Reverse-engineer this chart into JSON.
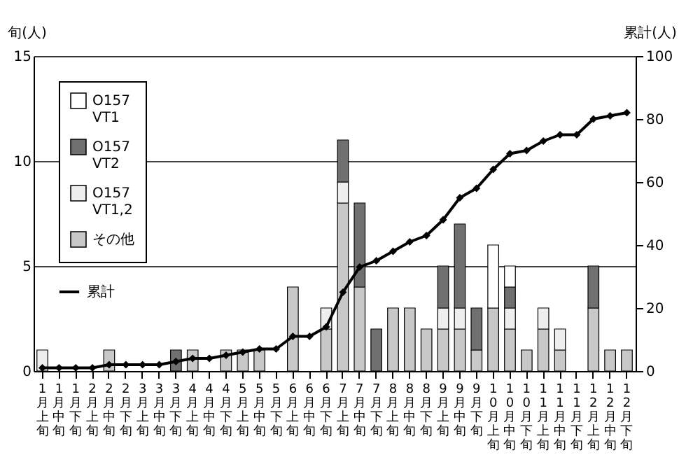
{
  "chart_data": {
    "type": "bar",
    "stacked": true,
    "categories": [
      "1月上旬",
      "1月中旬",
      "1月下旬",
      "2月上旬",
      "2月中旬",
      "2月下旬",
      "3月上旬",
      "3月中旬",
      "3月下旬",
      "4月上旬",
      "4月中旬",
      "4月下旬",
      "5月上旬",
      "5月中旬",
      "5月下旬",
      "6月上旬",
      "6月中旬",
      "6月下旬",
      "7月上旬",
      "7月中旬",
      "7月下旬",
      "8月上旬",
      "8月中旬",
      "8月下旬",
      "9月上旬",
      "9月中旬",
      "9月下旬",
      "10月上旬",
      "10月中旬",
      "10月下旬",
      "11月上旬",
      "11月中旬",
      "11月下旬",
      "12月上旬",
      "12月中旬",
      "12月下旬"
    ],
    "series": [
      {
        "name": "その他",
        "color": "#c8c8c8",
        "values": [
          0,
          0,
          0,
          0,
          1,
          0,
          0,
          0,
          0,
          1,
          0,
          1,
          1,
          1,
          0,
          4,
          0,
          2,
          8,
          4,
          0,
          3,
          3,
          2,
          2,
          2,
          1,
          3,
          2,
          1,
          2,
          1,
          0,
          3,
          1,
          1
        ]
      },
      {
        "name": "O157 VT1,2",
        "color": "#eeeeee",
        "values": [
          1,
          0,
          0,
          0,
          0,
          0,
          0,
          0,
          0,
          0,
          0,
          0,
          0,
          0,
          0,
          0,
          0,
          1,
          1,
          0,
          0,
          0,
          0,
          0,
          1,
          1,
          0,
          0,
          1,
          0,
          1,
          1,
          0,
          0,
          0,
          0
        ]
      },
      {
        "name": "O157 VT2",
        "color": "#707070",
        "values": [
          0,
          0,
          0,
          0,
          0,
          0,
          0,
          0,
          1,
          0,
          0,
          0,
          0,
          0,
          0,
          0,
          0,
          0,
          2,
          4,
          2,
          0,
          0,
          0,
          2,
          4,
          2,
          0,
          1,
          0,
          0,
          0,
          0,
          2,
          0,
          0
        ]
      },
      {
        "name": "O157 VT1",
        "color": "#ffffff",
        "values": [
          0,
          0,
          0,
          0,
          0,
          0,
          0,
          0,
          0,
          0,
          0,
          0,
          0,
          0,
          0,
          0,
          0,
          0,
          0,
          0,
          0,
          0,
          0,
          0,
          0,
          0,
          0,
          3,
          1,
          0,
          0,
          0,
          0,
          0,
          0,
          0
        ]
      },
      {
        "name": "累計",
        "type": "line",
        "axis": "y2",
        "color": "#000000",
        "marker": "diamond",
        "values": [
          1,
          1,
          1,
          1,
          2,
          2,
          2,
          2,
          3,
          4,
          4,
          5,
          6,
          7,
          7,
          11,
          11,
          14,
          25,
          33,
          35,
          38,
          41,
          43,
          48,
          55,
          58,
          64,
          69,
          70,
          73,
          75,
          75,
          80,
          81,
          82
        ]
      }
    ],
    "ylabel": "旬(人)",
    "y2label": "累計(人)",
    "ylim": [
      0,
      15
    ],
    "yticks": [
      0,
      5,
      10,
      15
    ],
    "y2lim": [
      0,
      100
    ],
    "y2ticks": [
      0,
      20,
      40,
      60,
      80,
      100
    ],
    "grid": "y",
    "legend": "top left"
  }
}
